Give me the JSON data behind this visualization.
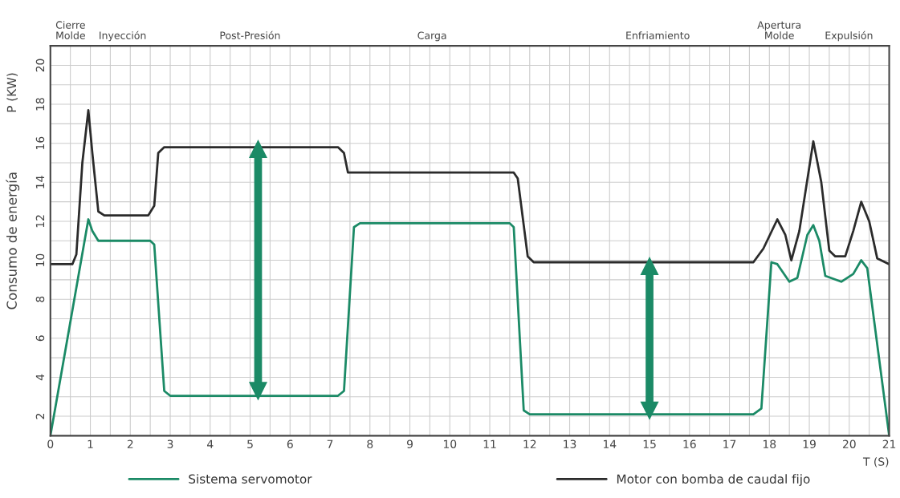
{
  "chart_data": {
    "type": "line",
    "xlabel": "T (S)",
    "ylabel": "Consumo de energía",
    "annotations": [
      "P (KW)",
      "Cierre\nMolde",
      "Inyección",
      "Post-Presión",
      "Carga",
      "Enfriamiento",
      "Apertura\nMolde",
      "Expulsión"
    ],
    "xlim": [
      0,
      21
    ],
    "ylim": [
      1,
      21
    ],
    "xticks": [
      0,
      {
        "value": 0.5,
        "label": null
      },
      1,
      {
        "value": 1.5,
        "label": null
      },
      2,
      {
        "value": 2.5,
        "label": null
      },
      3,
      {
        "value": 3.5,
        "label": null
      },
      4,
      {
        "value": 4.5,
        "label": null
      },
      5,
      {
        "value": 5.5,
        "label": null
      },
      6,
      {
        "value": 6.5,
        "label": null
      },
      7,
      {
        "value": 7.5,
        "label": null
      },
      8,
      {
        "value": 8.5,
        "label": null
      },
      9,
      {
        "value": 9.5,
        "label": null
      },
      10,
      {
        "value": 10.5,
        "label": null
      },
      11,
      {
        "value": 11.5,
        "label": null
      },
      12,
      {
        "value": 12.5,
        "label": null
      },
      13,
      {
        "value": 13.5,
        "label": null
      },
      14,
      {
        "value": 14.5,
        "label": null
      },
      15,
      {
        "value": 15.5,
        "label": null
      },
      16,
      {
        "value": 16.5,
        "label": null
      },
      17,
      {
        "value": 17.5,
        "label": null
      },
      18,
      {
        "value": 18.5,
        "label": null
      },
      19,
      {
        "value": 19.5,
        "label": null
      },
      20,
      {
        "value": 20.5,
        "label": null
      },
      21
    ],
    "yticks": [
      2,
      {
        "value": 3,
        "label": null
      },
      4,
      {
        "value": 5,
        "label": null
      },
      6,
      {
        "value": 7,
        "label": null
      },
      8,
      {
        "value": 9,
        "label": null
      },
      10,
      {
        "value": 11,
        "label": null
      },
      12,
      {
        "value": 13,
        "label": null
      },
      14,
      {
        "value": 15,
        "label": null
      },
      16,
      {
        "value": 17,
        "label": null
      },
      18,
      {
        "value": 19,
        "label": null
      },
      20
    ],
    "grid": true,
    "legend": "bottom",
    "line_style": "solid",
    "series": [
      {
        "name": "Sistema servomotor",
        "color": "#1b8a66",
        "x": [
          0,
          0.95,
          1.05,
          1.2,
          2.5,
          2.6,
          2.85,
          3.0,
          7.2,
          7.35,
          7.6,
          7.75,
          11.5,
          11.6,
          11.85,
          12.0,
          17.6,
          17.8,
          18.05,
          18.2,
          18.5,
          18.7,
          18.95,
          19.1,
          19.25,
          19.4,
          19.8,
          20.1,
          20.3,
          20.45,
          21
        ],
        "values": [
          1.0,
          12.1,
          11.5,
          11.0,
          11.0,
          10.8,
          3.3,
          3.05,
          3.05,
          3.3,
          11.7,
          11.9,
          11.9,
          11.7,
          2.3,
          2.1,
          2.1,
          2.4,
          9.9,
          9.8,
          8.9,
          9.1,
          11.3,
          11.8,
          11.0,
          9.2,
          8.9,
          9.3,
          10.0,
          9.6,
          1.0
        ]
      },
      {
        "name": "Motor con bomba de caudal fijo",
        "color": "#2b2b2b",
        "x": [
          0,
          0.55,
          0.65,
          0.8,
          0.95,
          1.05,
          1.2,
          1.35,
          2.45,
          2.6,
          2.7,
          2.85,
          7.2,
          7.35,
          7.45,
          7.6,
          11.6,
          11.7,
          11.95,
          12.1,
          17.6,
          17.85,
          18.2,
          18.4,
          18.55,
          18.75,
          19.1,
          19.3,
          19.5,
          19.65,
          19.9,
          20.1,
          20.3,
          20.5,
          20.7,
          21
        ],
        "values": [
          9.8,
          9.8,
          10.3,
          15.0,
          17.7,
          15.5,
          12.5,
          12.3,
          12.3,
          12.8,
          15.5,
          15.8,
          15.8,
          15.5,
          14.5,
          14.5,
          14.5,
          14.2,
          10.2,
          9.9,
          9.9,
          10.6,
          12.1,
          11.3,
          10.0,
          11.5,
          16.1,
          14.0,
          10.5,
          10.2,
          10.2,
          11.5,
          13.0,
          12.0,
          10.1,
          9.8
        ]
      },
      {
        "type": "line",
        "marker": "triangle",
        "color": "#1b8a66",
        "x": [
          5.2,
          5.2
        ],
        "values": [
          3.3,
          15.7
        ]
      },
      {
        "type": "line",
        "marker": "triangle",
        "color": "#1b8a66",
        "x": [
          15.0,
          15.0
        ],
        "values": [
          2.3,
          9.7
        ]
      }
    ]
  }
}
